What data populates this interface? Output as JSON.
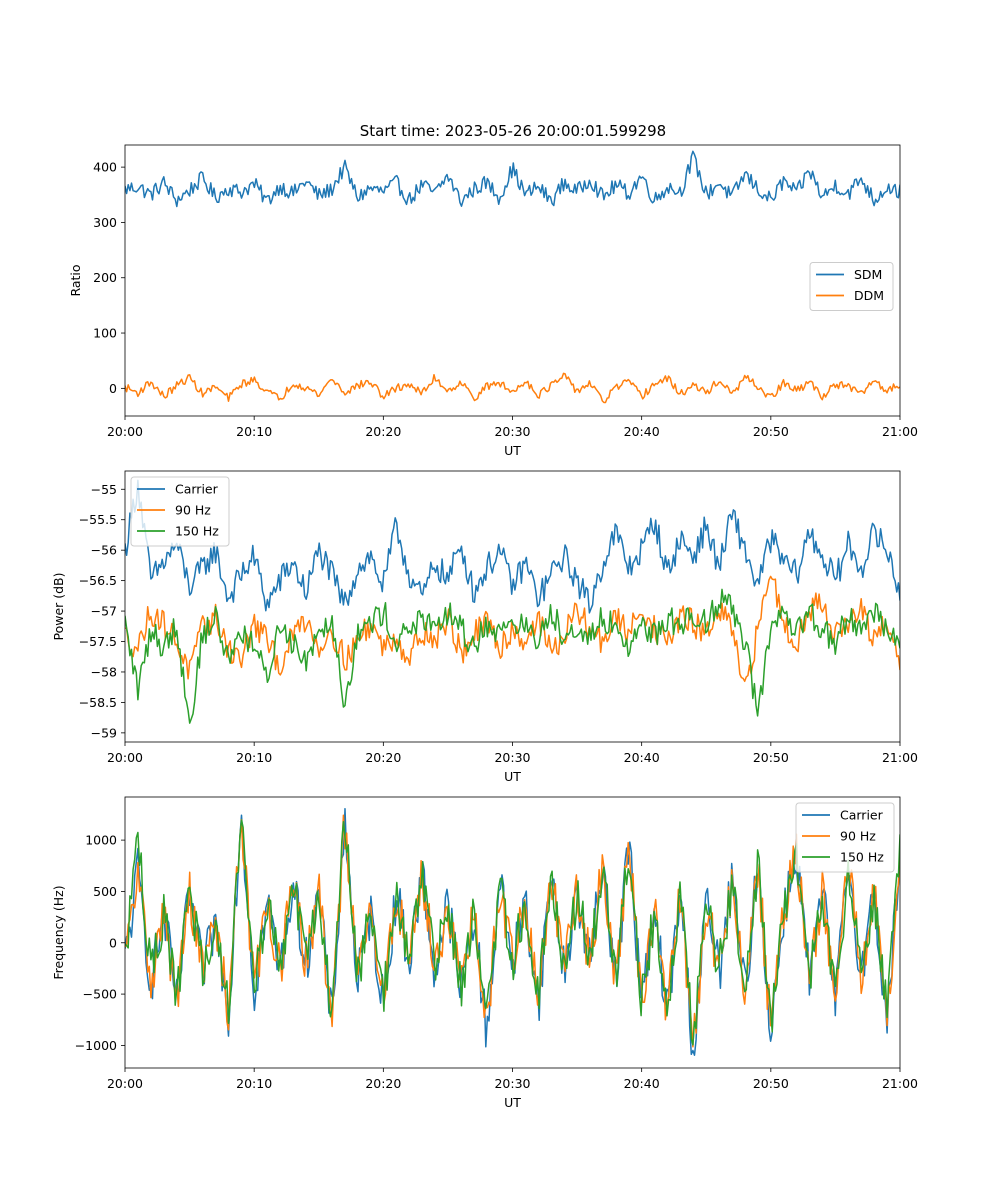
{
  "figure": {
    "title": "Start time: 2023-05-26 20:00:01.599298"
  },
  "chart_data": [
    {
      "type": "line",
      "title": "Start time: 2023-05-26 20:00:01.599298",
      "xlabel": "UT",
      "ylabel": "Ratio",
      "x_range": [
        "20:00",
        "21:00"
      ],
      "ylim": [
        -50,
        440
      ],
      "xticks": [
        "20:00",
        "20:10",
        "20:20",
        "20:30",
        "20:40",
        "20:50",
        "21:00"
      ],
      "yticks": [
        0,
        100,
        200,
        300,
        400
      ],
      "legend": {
        "location": "center-right"
      },
      "series": [
        {
          "name": "SDM",
          "color": "#1f77b4",
          "mean": 355,
          "amplitude": 22,
          "values": [
            360,
            365,
            350,
            372,
            340,
            358,
            380,
            345,
            362,
            355,
            370,
            338,
            366,
            352,
            375,
            348,
            360,
            400,
            345,
            362,
            355,
            372,
            340,
            368,
            352,
            385,
            338,
            360,
            372,
            345,
            398,
            350,
            365,
            338,
            372,
            355,
            380,
            345,
            368,
            352,
            385,
            340,
            365,
            355,
            418,
            350,
            372,
            345,
            388,
            360,
            340,
            375,
            352,
            395,
            345,
            368,
            352,
            380,
            340,
            365,
            355
          ]
        },
        {
          "name": "DDM",
          "color": "#ff7f0e",
          "mean": 0,
          "amplitude": 11,
          "values": [
            2,
            -8,
            12,
            -15,
            5,
            20,
            -10,
            3,
            -18,
            8,
            15,
            -5,
            -20,
            10,
            2,
            -12,
            18,
            -8,
            5,
            12,
            -15,
            0,
            8,
            -10,
            20,
            -5,
            12,
            -18,
            3,
            10,
            -8,
            15,
            -12,
            5,
            22,
            -5,
            10,
            -25,
            2,
            12,
            -15,
            8,
            18,
            -10,
            5,
            -8,
            15,
            -12,
            20,
            3,
            -18,
            10,
            -5,
            12,
            -15,
            8,
            2,
            -10,
            15,
            -5,
            8
          ]
        }
      ]
    },
    {
      "type": "line",
      "xlabel": "UT",
      "ylabel": "Power (dB)",
      "x_range": [
        "20:00",
        "21:00"
      ],
      "ylim": [
        -59.15,
        -54.7
      ],
      "xticks": [
        "20:00",
        "20:10",
        "20:20",
        "20:30",
        "20:40",
        "20:50",
        "21:00"
      ],
      "yticks": [
        -55.0,
        -55.5,
        -56.0,
        -56.5,
        -57.0,
        -57.5,
        -58.0,
        -58.5,
        -59.0
      ],
      "legend": {
        "location": "top-left"
      },
      "series": [
        {
          "name": "Carrier",
          "color": "#1f77b4",
          "mean": -56.25,
          "amplitude": 0.35,
          "values": [
            -56.0,
            -54.9,
            -56.5,
            -56.2,
            -55.9,
            -56.6,
            -56.3,
            -56.0,
            -56.8,
            -56.4,
            -56.1,
            -56.9,
            -56.5,
            -56.2,
            -56.7,
            -56.0,
            -56.4,
            -56.9,
            -56.3,
            -56.1,
            -56.6,
            -55.6,
            -56.4,
            -56.8,
            -56.2,
            -56.5,
            -55.9,
            -56.7,
            -56.3,
            -56.0,
            -56.6,
            -56.2,
            -56.8,
            -56.4,
            -56.1,
            -56.5,
            -56.9,
            -56.2,
            -55.7,
            -56.3,
            -56.0,
            -55.5,
            -56.4,
            -55.8,
            -56.1,
            -55.6,
            -56.3,
            -55.4,
            -56.0,
            -56.6,
            -55.8,
            -56.2,
            -56.4,
            -55.7,
            -56.1,
            -56.5,
            -55.9,
            -56.3,
            -55.7,
            -56.0,
            -56.7
          ]
        },
        {
          "name": "90 Hz",
          "color": "#ff7f0e",
          "mean": -57.35,
          "amplitude": 0.35,
          "values": [
            -57.4,
            -57.6,
            -57.0,
            -57.2,
            -57.5,
            -58.0,
            -57.3,
            -57.1,
            -57.6,
            -57.8,
            -57.2,
            -57.5,
            -57.9,
            -57.4,
            -57.1,
            -57.6,
            -57.3,
            -57.8,
            -57.5,
            -57.2,
            -57.6,
            -57.4,
            -57.8,
            -57.3,
            -57.5,
            -57.1,
            -57.7,
            -57.4,
            -57.2,
            -57.6,
            -57.3,
            -57.5,
            -57.1,
            -57.7,
            -57.4,
            -57.0,
            -57.3,
            -57.5,
            -57.1,
            -57.4,
            -56.9,
            -57.3,
            -57.5,
            -57.1,
            -57.2,
            -57.4,
            -57.0,
            -57.3,
            -58.4,
            -57.3,
            -56.3,
            -57.2,
            -57.5,
            -57.0,
            -56.8,
            -57.4,
            -57.2,
            -57.0,
            -57.5,
            -57.2,
            -57.9
          ]
        },
        {
          "name": "150 Hz",
          "color": "#2ca02c",
          "mean": -57.35,
          "amplitude": 0.35,
          "values": [
            -57.2,
            -58.3,
            -57.3,
            -57.6,
            -57.2,
            -58.9,
            -57.4,
            -57.1,
            -57.8,
            -57.3,
            -57.6,
            -58.1,
            -57.2,
            -57.5,
            -57.8,
            -57.3,
            -57.1,
            -58.5,
            -57.4,
            -57.2,
            -57.0,
            -57.5,
            -57.3,
            -57.1,
            -57.4,
            -57.0,
            -57.3,
            -57.6,
            -57.2,
            -57.4,
            -57.1,
            -57.3,
            -57.5,
            -57.0,
            -57.4,
            -57.2,
            -57.5,
            -57.1,
            -57.3,
            -57.6,
            -57.2,
            -57.4,
            -57.1,
            -57.3,
            -57.0,
            -57.2,
            -56.8,
            -56.9,
            -57.5,
            -58.7,
            -57.3,
            -57.1,
            -57.4,
            -57.0,
            -57.3,
            -57.5,
            -57.1,
            -57.3,
            -57.0,
            -57.3,
            -57.6
          ]
        }
      ]
    },
    {
      "type": "line",
      "xlabel": "UT",
      "ylabel": "Frequency (Hz)",
      "x_range": [
        "20:00",
        "21:00"
      ],
      "ylim": [
        -1220,
        1420
      ],
      "xticks": [
        "20:00",
        "20:10",
        "20:20",
        "20:30",
        "20:40",
        "20:50",
        "21:00"
      ],
      "yticks": [
        -1000,
        -500,
        0,
        500,
        1000
      ],
      "legend": {
        "location": "top-right"
      },
      "series": [
        {
          "name": "Carrier",
          "color": "#1f77b4",
          "mean": 0,
          "amplitude": 380,
          "values": [
            -200,
            700,
            -400,
            300,
            -600,
            500,
            -300,
            200,
            -700,
            1300,
            -500,
            400,
            -300,
            600,
            -200,
            500,
            -800,
            1200,
            -400,
            300,
            -600,
            500,
            -200,
            700,
            -300,
            400,
            -500,
            300,
            -900,
            600,
            -200,
            400,
            -600,
            700,
            -300,
            500,
            -200,
            800,
            -400,
            1000,
            -600,
            300,
            -700,
            500,
            -1100,
            400,
            -300,
            600,
            -500,
            800,
            -900,
            300,
            900,
            -400,
            500,
            -600,
            800,
            -300,
            500,
            -800,
            900
          ]
        },
        {
          "name": "90 Hz",
          "color": "#ff7f0e",
          "mean": 0,
          "amplitude": 360,
          "values": [
            -180,
            680,
            -380,
            290,
            -580,
            490,
            -280,
            210,
            -680,
            1290,
            -480,
            400,
            -280,
            590,
            -190,
            490,
            -770,
            1190,
            -380,
            300,
            -570,
            490,
            -190,
            690,
            -280,
            400,
            -480,
            300,
            -870,
            590,
            -190,
            400,
            -580,
            690,
            -280,
            490,
            -190,
            790,
            -380,
            990,
            -580,
            300,
            -680,
            490,
            -1030,
            400,
            -280,
            590,
            -480,
            790,
            -870,
            300,
            890,
            -380,
            490,
            -580,
            790,
            -280,
            490,
            -770,
            890
          ]
        },
        {
          "name": "150 Hz",
          "color": "#2ca02c",
          "mean": 0,
          "amplitude": 350,
          "values": [
            -150,
            1080,
            -350,
            280,
            -550,
            480,
            -250,
            220,
            -650,
            1320,
            -450,
            410,
            -250,
            580,
            -180,
            480,
            -730,
            1210,
            -350,
            310,
            -540,
            480,
            -180,
            680,
            -250,
            410,
            -450,
            310,
            -830,
            580,
            -180,
            410,
            -550,
            680,
            -250,
            480,
            -180,
            780,
            -350,
            980,
            -550,
            310,
            -650,
            480,
            -980,
            410,
            -250,
            580,
            -450,
            780,
            -830,
            310,
            920,
            -350,
            480,
            -550,
            780,
            -250,
            480,
            -730,
            960
          ]
        }
      ]
    }
  ]
}
